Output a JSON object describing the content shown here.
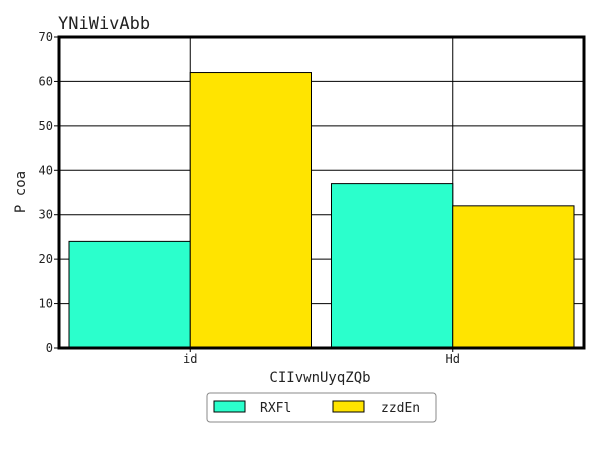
{
  "chart_data": {
    "type": "bar",
    "title": "YNiWivAbb",
    "xlabel": "CIIvwnUyqZQb",
    "ylabel": "P coa",
    "categories": [
      "id",
      "Hd"
    ],
    "series": [
      {
        "name": "RXFl",
        "values": [
          24,
          37
        ],
        "color": "#2bffcc"
      },
      {
        "name": "zzdEn",
        "values": [
          62,
          32
        ],
        "color": "#ffe400"
      }
    ],
    "ylim": [
      0,
      70
    ],
    "yticks": [
      0,
      10,
      20,
      30,
      40,
      50,
      60,
      70
    ],
    "grid": true,
    "legend_position": "bottom-center"
  }
}
